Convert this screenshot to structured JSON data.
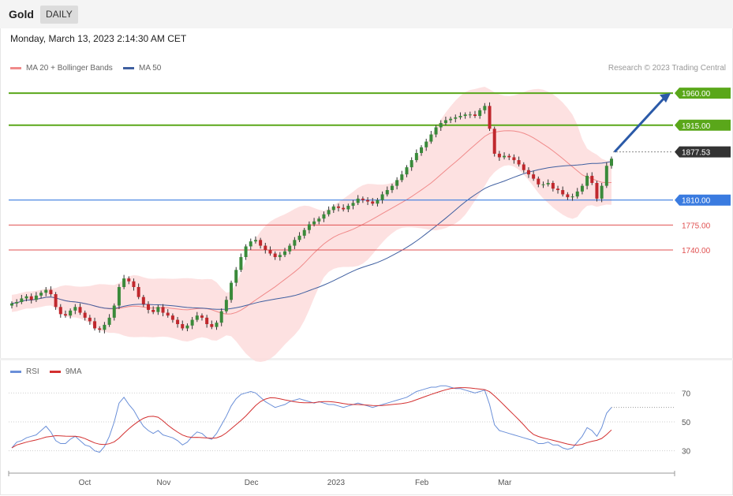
{
  "header": {
    "symbol": "Gold",
    "timeframe": "DAILY",
    "datetime": "Monday, March 13, 2023 2:14:30 AM CET",
    "credit": "Research © 2023 Trading Central"
  },
  "legend": {
    "ma20_label": "MA 20 + Bollinger Bands",
    "ma50_label": "MA 50",
    "rsi_label": "RSI",
    "rsi_ma_label": "9MA"
  },
  "colors": {
    "up": "#3a8a3a",
    "down": "#c0282d",
    "ma20": "#f08a8a",
    "ma50": "#3f5fa0",
    "band": "#fddcdc",
    "target": "#5aa71a",
    "support": "#3a7be0",
    "level_red": "#e05050",
    "current": "#333333",
    "arrow": "#2b5aa8",
    "rsi": "#6a8fd8",
    "rsi_ma": "#d33030"
  },
  "chart_data": [
    {
      "type": "candlestick",
      "title": "Gold",
      "timeframe": "DAILY",
      "x_labels": [
        "Oct",
        "Nov",
        "Dec",
        "2023",
        "Feb",
        "Mar"
      ],
      "ylim": [
        1615,
        1980
      ],
      "grid": false,
      "levels": [
        {
          "value": 1960.0,
          "label": "1960.00",
          "kind": "target"
        },
        {
          "value": 1915.0,
          "label": "1915.00",
          "kind": "target"
        },
        {
          "value": 1877.53,
          "label": "1877.53",
          "kind": "current"
        },
        {
          "value": 1810.0,
          "label": "1810.00",
          "kind": "support"
        },
        {
          "value": 1775.0,
          "label": "1775.00",
          "kind": "resistance"
        },
        {
          "value": 1740.0,
          "label": "1740.00",
          "kind": "resistance"
        }
      ],
      "arrow": {
        "from": 1877.53,
        "to": 1960.0
      },
      "close": [
        1665,
        1667,
        1672,
        1675,
        1670,
        1676,
        1680,
        1684,
        1678,
        1660,
        1650,
        1648,
        1655,
        1660,
        1652,
        1645,
        1640,
        1630,
        1628,
        1635,
        1645,
        1662,
        1688,
        1700,
        1696,
        1688,
        1674,
        1664,
        1656,
        1653,
        1660,
        1652,
        1648,
        1642,
        1636,
        1630,
        1634,
        1642,
        1648,
        1645,
        1636,
        1632,
        1638,
        1654,
        1670,
        1694,
        1712,
        1730,
        1745,
        1752,
        1754,
        1746,
        1740,
        1735,
        1730,
        1733,
        1738,
        1746,
        1754,
        1760,
        1768,
        1776,
        1780,
        1784,
        1790,
        1796,
        1801,
        1799,
        1797,
        1802,
        1806,
        1812,
        1810,
        1808,
        1805,
        1810,
        1818,
        1824,
        1830,
        1838,
        1846,
        1856,
        1866,
        1876,
        1884,
        1892,
        1902,
        1912,
        1918,
        1922,
        1924,
        1926,
        1928,
        1930,
        1930,
        1928,
        1936,
        1942,
        1910,
        1875,
        1870,
        1872,
        1870,
        1866,
        1860,
        1852,
        1846,
        1840,
        1832,
        1832,
        1834,
        1826,
        1824,
        1818,
        1814,
        1815,
        1822,
        1830,
        1844,
        1834,
        1812,
        1830,
        1858,
        1868
      ]
    },
    {
      "type": "line",
      "title": "RSI",
      "series": [
        {
          "name": "RSI"
        },
        {
          "name": "9MA"
        }
      ],
      "x_labels": [
        "Oct",
        "Nov",
        "Dec",
        "2023",
        "Feb",
        "Mar"
      ],
      "y_ticks": [
        30,
        50,
        70
      ],
      "ylim": [
        20,
        80
      ],
      "rsi_values": [
        32,
        36,
        37,
        39,
        40,
        41,
        44,
        47,
        43,
        37,
        35,
        35,
        38,
        40,
        37,
        34,
        33,
        30,
        29,
        33,
        40,
        50,
        63,
        67,
        62,
        58,
        52,
        47,
        44,
        42,
        44,
        41,
        40,
        39,
        37,
        34,
        36,
        40,
        43,
        42,
        39,
        38,
        42,
        48,
        54,
        61,
        66,
        69,
        70,
        71,
        70,
        67,
        64,
        62,
        60,
        61,
        62,
        64,
        65,
        66,
        65,
        64,
        63,
        64,
        63,
        62,
        62,
        61,
        60,
        61,
        62,
        63,
        62,
        61,
        60,
        61,
        62,
        63,
        64,
        65,
        66,
        67,
        69,
        71,
        72,
        73,
        74,
        74,
        75,
        75,
        74,
        73,
        73,
        72,
        71,
        70,
        71,
        72,
        62,
        48,
        44,
        43,
        42,
        41,
        40,
        39,
        38,
        37,
        35,
        35,
        36,
        34,
        34,
        32,
        31,
        32,
        36,
        40,
        46,
        44,
        40,
        46,
        56,
        60
      ]
    }
  ]
}
